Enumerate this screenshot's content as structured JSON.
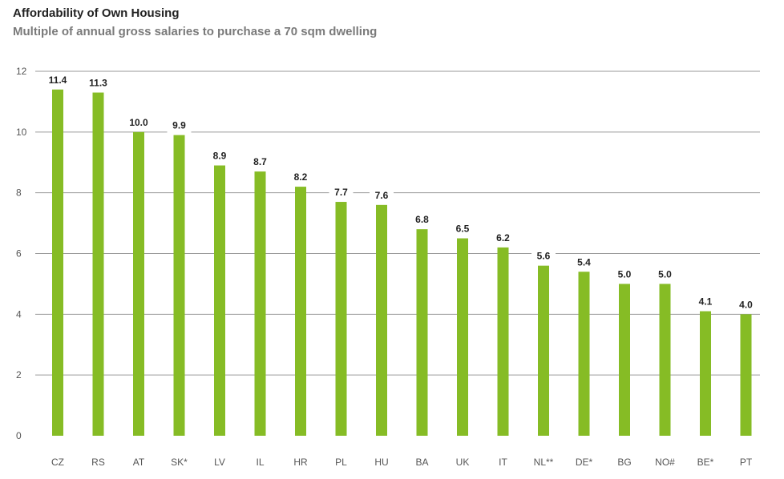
{
  "header": {
    "title": "Affordability of Own Housing",
    "subtitle": "Multiple of annual gross salaries to purchase a 70 sqm dwelling"
  },
  "colors": {
    "bar": "#86bc25",
    "grid": "#9a9a9a"
  },
  "chart_data": {
    "type": "bar",
    "title": "Affordability of Own Housing",
    "subtitle": "Multiple of annual gross salaries to purchase a 70 sqm dwelling",
    "xlabel": "",
    "ylabel": "",
    "ylim": [
      0,
      12
    ],
    "yticks": [
      0,
      2,
      4,
      6,
      8,
      10,
      12
    ],
    "grid": true,
    "legend": "none",
    "categories": [
      "CZ",
      "RS",
      "AT",
      "SK*",
      "LV",
      "IL",
      "HR",
      "PL",
      "HU",
      "BA",
      "UK",
      "IT",
      "NL**",
      "DE*",
      "BG",
      "NO#",
      "BE*",
      "PT"
    ],
    "values": [
      11.4,
      11.3,
      10.0,
      9.9,
      8.9,
      8.7,
      8.2,
      7.7,
      7.6,
      6.8,
      6.5,
      6.2,
      5.6,
      5.4,
      5.0,
      5.0,
      4.1,
      4.0
    ],
    "data_labels": [
      "11.4",
      "11.3",
      "10.0",
      "9.9",
      "8.9",
      "8.7",
      "8.2",
      "7.7",
      "7.6",
      "6.8",
      "6.5",
      "6.2",
      "5.6",
      "5.4",
      "5.0",
      "5.0",
      "4.1",
      "4.0"
    ]
  }
}
